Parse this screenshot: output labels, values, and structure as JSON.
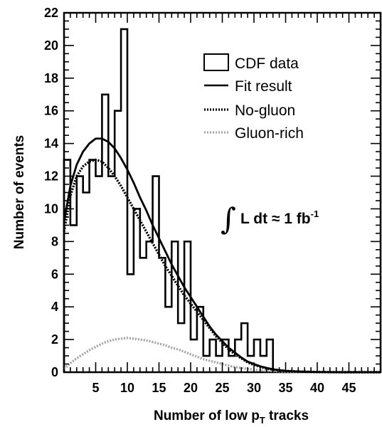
{
  "chart_data": {
    "type": "histogram",
    "xlabel": "Number of low p",
    "xlabel_subscript": "T",
    "xlabel_suffix": " tracks",
    "ylabel": "Number of events",
    "xlim": [
      0,
      50
    ],
    "ylim": [
      0,
      22
    ],
    "x_ticks": [
      5,
      10,
      15,
      20,
      25,
      30,
      35,
      40,
      45
    ],
    "y_ticks": [
      0,
      2,
      4,
      6,
      8,
      10,
      12,
      14,
      16,
      18,
      20,
      22
    ],
    "grid": false,
    "legend_position": "top-right",
    "annotation": {
      "integral_sign": "∫",
      "text": "L dt ≈ 1 fb",
      "superscript": "-1"
    },
    "histogram": {
      "name": "CDF data",
      "bin_width": 1,
      "bins_start": [
        0,
        1,
        2,
        3,
        4,
        5,
        6,
        7,
        8,
        9,
        10,
        11,
        12,
        13,
        14,
        15,
        16,
        17,
        18,
        19,
        20,
        21,
        22,
        23,
        24,
        25,
        26,
        27,
        28,
        29,
        30,
        31,
        32
      ],
      "counts": [
        13,
        9,
        12,
        11,
        13,
        12,
        17,
        12,
        16,
        21,
        6,
        10,
        7,
        8,
        12,
        7,
        4,
        8,
        3,
        8,
        2,
        4,
        1,
        2,
        1,
        2,
        1,
        2,
        3,
        1,
        2,
        1,
        2
      ]
    },
    "series": [
      {
        "name": "Fit result",
        "style": "solid",
        "color": "#000000",
        "x": [
          0,
          1,
          2,
          3,
          4,
          5,
          6,
          7,
          8,
          9,
          10,
          11,
          12,
          13,
          14,
          15,
          16,
          17,
          18,
          19,
          20,
          21,
          22,
          23,
          24,
          25,
          26,
          27,
          28,
          29,
          30,
          31,
          32,
          33,
          34,
          35,
          36,
          37,
          38,
          39,
          40,
          42,
          44,
          46,
          48,
          50
        ],
        "y": [
          9.2,
          11.4,
          12.7,
          13.5,
          14.0,
          14.3,
          14.3,
          14.1,
          13.7,
          13.1,
          12.4,
          11.6,
          10.7,
          9.9,
          9.0,
          8.2,
          7.4,
          6.6,
          5.9,
          5.2,
          4.6,
          4.0,
          3.4,
          2.8,
          2.3,
          1.9,
          1.5,
          1.2,
          0.9,
          0.65,
          0.5,
          0.36,
          0.26,
          0.18,
          0.12,
          0.08,
          0.06,
          0.04,
          0.03,
          0.02,
          0.01,
          0.005,
          0.0,
          0.0,
          0.0,
          0.0
        ]
      },
      {
        "name": "No-gluon",
        "style": "dotted",
        "color": "#000000",
        "x": [
          0,
          1,
          2,
          3,
          4,
          5,
          6,
          7,
          8,
          9,
          10,
          11,
          12,
          13,
          14,
          15,
          16,
          17,
          18,
          19,
          20,
          21,
          22,
          23,
          24,
          25,
          26,
          27,
          28,
          29,
          30,
          31,
          32,
          33,
          34,
          35,
          36,
          37,
          38,
          39,
          40,
          42,
          44,
          46,
          48,
          50
        ],
        "y": [
          8.6,
          10.8,
          12.0,
          12.6,
          12.9,
          13.0,
          12.9,
          12.5,
          12.0,
          11.4,
          10.7,
          10.0,
          9.3,
          8.6,
          7.9,
          7.2,
          6.5,
          5.9,
          5.3,
          4.7,
          4.2,
          3.7,
          3.2,
          2.7,
          2.2,
          1.8,
          1.4,
          1.1,
          0.85,
          0.6,
          0.45,
          0.33,
          0.24,
          0.17,
          0.12,
          0.08,
          0.06,
          0.04,
          0.03,
          0.02,
          0.01,
          0.005,
          0.0,
          0.0,
          0.0,
          0.0
        ]
      },
      {
        "name": "Gluon-rich",
        "style": "dotted",
        "color": "#a8a8a8",
        "x": [
          0,
          1,
          2,
          3,
          4,
          5,
          6,
          7,
          8,
          9,
          10,
          11,
          12,
          13,
          14,
          15,
          16,
          17,
          18,
          19,
          20,
          21,
          22,
          23,
          24,
          25,
          26,
          27,
          28,
          29,
          30,
          31,
          32,
          33,
          34,
          35,
          36,
          38,
          40,
          42,
          44,
          46,
          48,
          50
        ],
        "y": [
          0.2,
          0.55,
          0.85,
          1.1,
          1.35,
          1.55,
          1.75,
          1.9,
          2.0,
          2.05,
          2.1,
          2.05,
          2.0,
          1.95,
          1.85,
          1.75,
          1.65,
          1.5,
          1.4,
          1.25,
          1.1,
          0.95,
          0.8,
          0.7,
          0.6,
          0.5,
          0.4,
          0.32,
          0.26,
          0.2,
          0.15,
          0.12,
          0.09,
          0.07,
          0.05,
          0.04,
          0.03,
          0.02,
          0.01,
          0.0,
          0.0,
          0.0,
          0.0,
          0.0
        ]
      }
    ]
  }
}
